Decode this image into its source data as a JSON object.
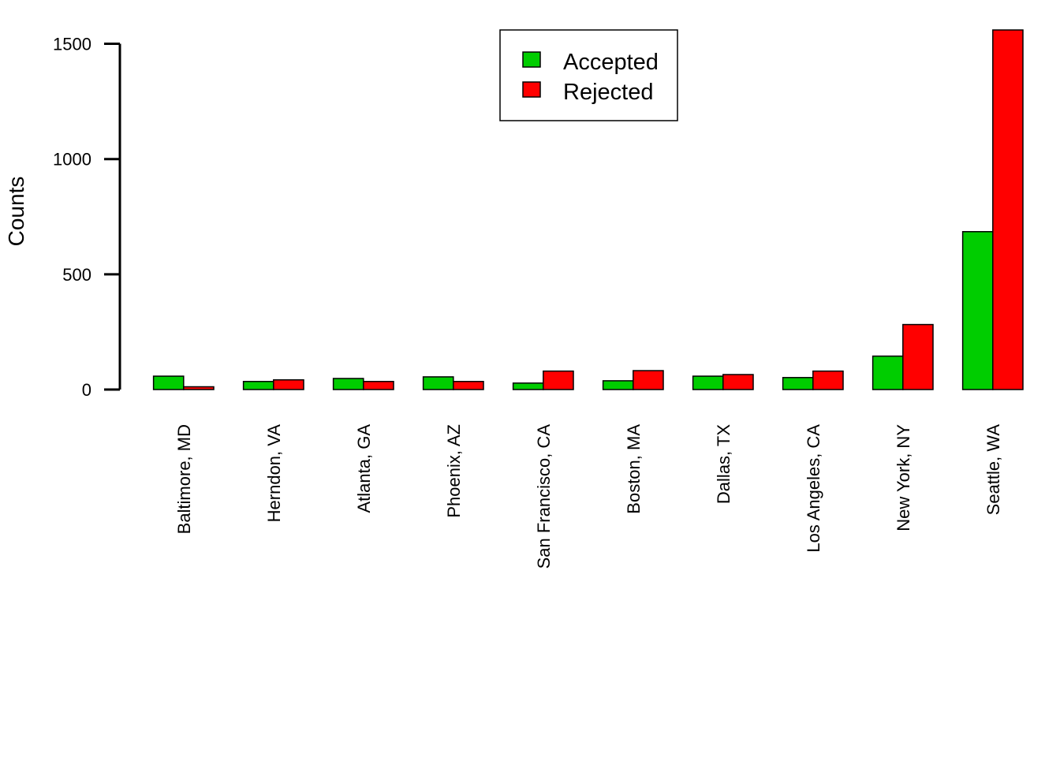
{
  "chart_data": {
    "type": "bar",
    "title": "",
    "xlabel": "",
    "ylabel": "Counts",
    "ylim": [
      0,
      1560
    ],
    "yticks": [
      0,
      500,
      1000,
      1500
    ],
    "ytick_labels": [
      "0",
      "500",
      "1000",
      "1500"
    ],
    "grid": false,
    "legend_position": "top-center",
    "categories": [
      "Baltimore, MD",
      "Herndon, VA",
      "Atlanta, GA",
      "Phoenix, AZ",
      "San Francisco, CA",
      "Boston, MA",
      "Dallas, TX",
      "Los Angeles, CA",
      "New York, NY",
      "Seattle, WA"
    ],
    "series": [
      {
        "name": "Accepted",
        "color": "#00cd00",
        "values": [
          58,
          35,
          48,
          55,
          28,
          38,
          58,
          52,
          145,
          685
        ]
      },
      {
        "name": "Rejected",
        "color": "#ff0000",
        "values": [
          12,
          42,
          35,
          35,
          80,
          82,
          65,
          80,
          282,
          1560
        ]
      }
    ]
  }
}
